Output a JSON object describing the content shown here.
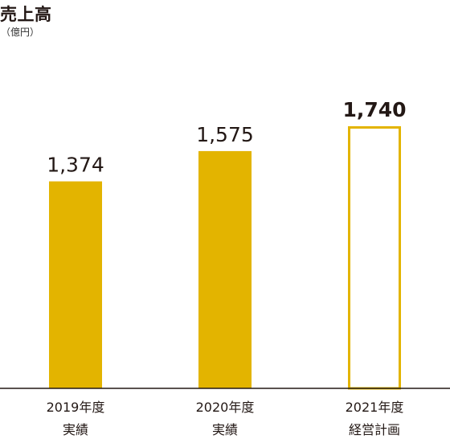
{
  "header": {
    "title": "売上高",
    "unit": "（億円）"
  },
  "chart_data": {
    "type": "bar",
    "title": "売上高",
    "unit": "億円",
    "categories": [
      {
        "line1": "2019年度",
        "line2": "実績"
      },
      {
        "line1": "2020年度",
        "line2": "実績"
      },
      {
        "line1": "2021年度",
        "line2": "経営計画"
      }
    ],
    "values": [
      1374,
      1575,
      1740
    ],
    "value_labels": [
      "1,374",
      "1,575",
      "1,740"
    ],
    "styles": [
      "filled",
      "filled",
      "outline"
    ],
    "emphasis": [
      false,
      false,
      true
    ],
    "ylim": [
      0,
      1740
    ],
    "grid": false,
    "legend": "none",
    "colors": {
      "bar": "#e3b400",
      "axis": "#231815",
      "text": "#231815"
    }
  }
}
